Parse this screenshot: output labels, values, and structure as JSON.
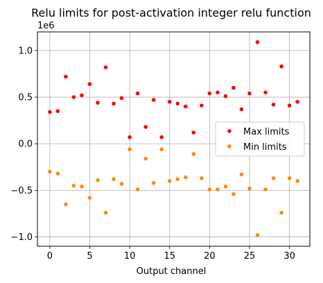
{
  "chart_data": {
    "type": "scatter",
    "title": "Relu limits for post-activation integer relu function",
    "xlabel": "Output channel",
    "ylabel": "",
    "y_offset_label": "1e6",
    "xlim": [
      -1.55,
      32.55
    ],
    "ylim": [
      -1.1,
      1.2
    ],
    "x_ticks": [
      0,
      5,
      10,
      15,
      20,
      25,
      30
    ],
    "x_tick_labels": [
      "0",
      "5",
      "10",
      "15",
      "20",
      "25",
      "30"
    ],
    "y_ticks": [
      -1.0,
      -0.5,
      0.0,
      0.5,
      1.0
    ],
    "y_tick_labels": [
      "−1.0",
      "−0.5",
      "0.0",
      "0.5",
      "1.0"
    ],
    "grid": true,
    "legend_position": "center-right",
    "x": [
      0,
      1,
      2,
      3,
      4,
      5,
      6,
      7,
      8,
      9,
      10,
      11,
      12,
      13,
      14,
      15,
      16,
      17,
      18,
      19,
      20,
      21,
      22,
      23,
      24,
      25,
      26,
      27,
      28,
      29,
      30,
      31
    ],
    "series": [
      {
        "name": "Max limits",
        "color": "#ff0000",
        "values": [
          0.34,
          0.35,
          0.72,
          0.5,
          0.52,
          0.64,
          0.44,
          0.82,
          0.43,
          0.49,
          0.07,
          0.54,
          0.18,
          0.47,
          0.07,
          0.45,
          0.43,
          0.4,
          0.12,
          0.41,
          0.54,
          0.55,
          0.51,
          0.6,
          0.37,
          0.54,
          1.09,
          0.55,
          0.42,
          0.83,
          0.41,
          0.45
        ]
      },
      {
        "name": "Min limits",
        "color": "#ff8c00",
        "values": [
          -0.3,
          -0.32,
          -0.65,
          -0.45,
          -0.46,
          -0.58,
          -0.39,
          -0.74,
          -0.38,
          -0.43,
          -0.06,
          -0.49,
          -0.16,
          -0.42,
          -0.06,
          -0.4,
          -0.38,
          -0.36,
          -0.11,
          -0.37,
          -0.49,
          -0.49,
          -0.46,
          -0.54,
          -0.33,
          -0.48,
          -0.98,
          -0.49,
          -0.37,
          -0.74,
          -0.37,
          -0.4
        ]
      }
    ]
  }
}
